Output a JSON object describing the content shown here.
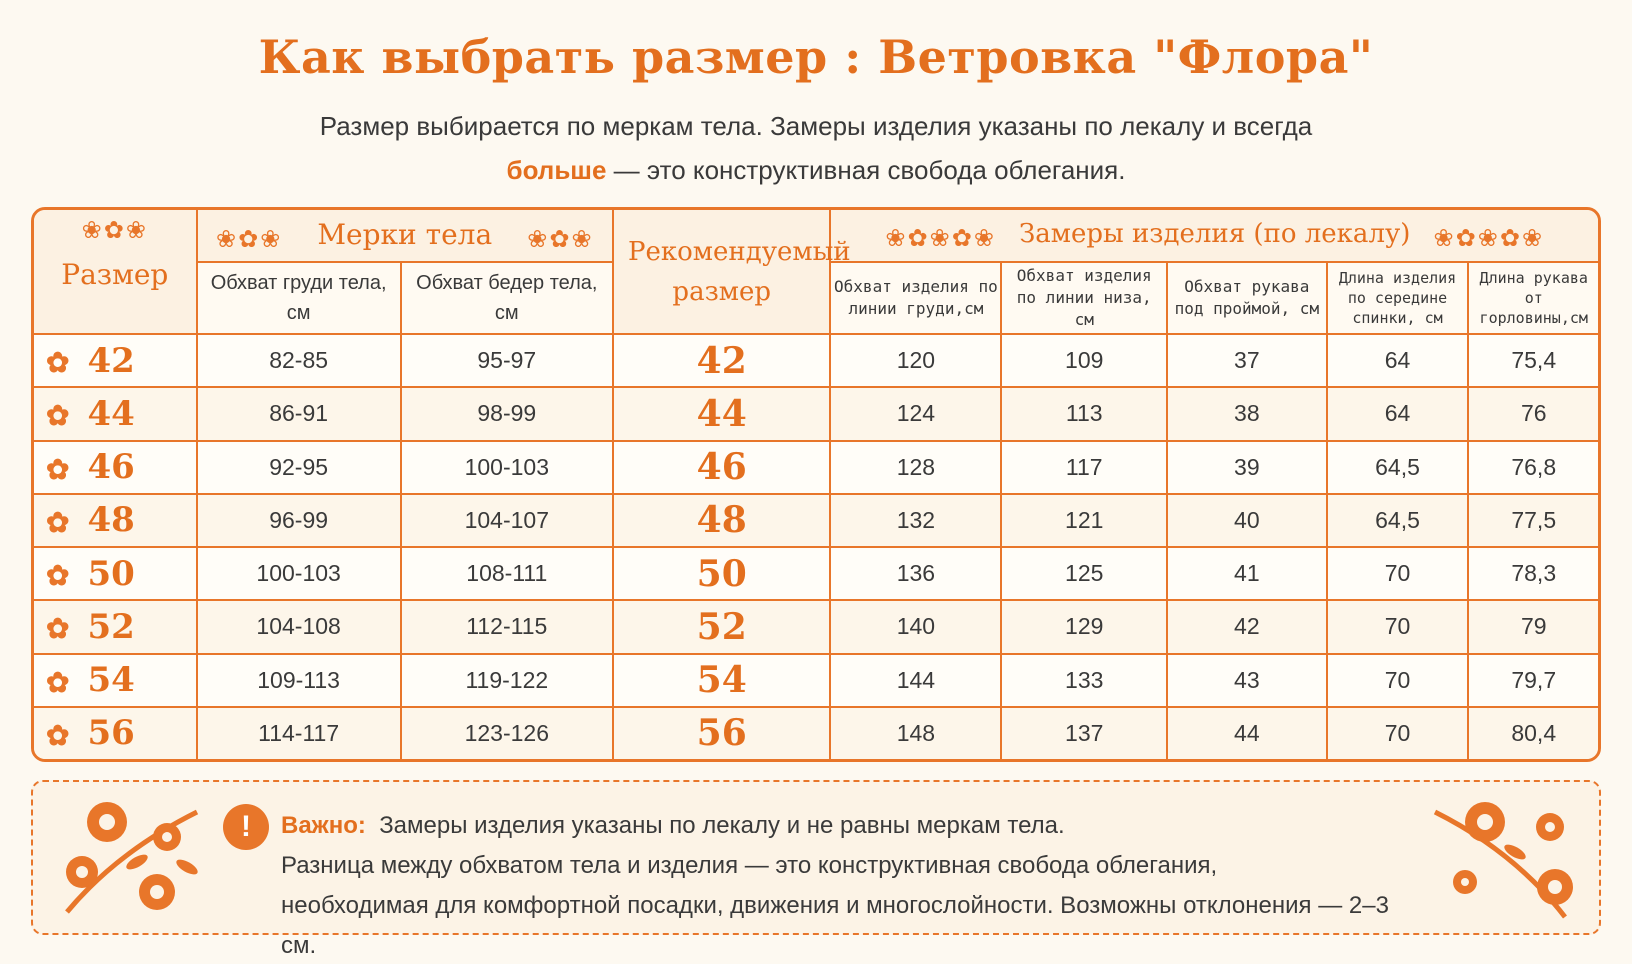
{
  "title": "Как выбрать размер :  Ветровка \"Флора\"",
  "subtitle": {
    "line1": "Размер выбирается по меркам тела. Замеры изделия указаны по лекалу и всегда",
    "bold": "больше",
    "line2_rest": " — это конструктивная свобода облегания."
  },
  "table": {
    "size_header": "Размер",
    "body_group": "Мерки тела",
    "rec_header": "Рекомендуемый размер",
    "garment_group": "Замеры изделия (по лекалу)",
    "columns": [
      "Обхват груди тела, см",
      "Обхват бедер тела, см",
      "Обхват изделия по линии груди,см",
      "Обхват изделия по линии низа, см",
      "Обхват рукава под проймой, см",
      "Длина изделия по середине спинки, см",
      "Длина рукава от горловины,см"
    ],
    "rows": [
      {
        "size": "42",
        "chest": "82-85",
        "hips": "95-97",
        "rec": "42",
        "g_chest": "120",
        "g_hem": "109",
        "sleeve": "37",
        "back": "64",
        "sleeve_len": "75,4"
      },
      {
        "size": "44",
        "chest": "86-91",
        "hips": "98-99",
        "rec": "44",
        "g_chest": "124",
        "g_hem": "113",
        "sleeve": "38",
        "back": "64",
        "sleeve_len": "76"
      },
      {
        "size": "46",
        "chest": "92-95",
        "hips": "100-103",
        "rec": "46",
        "g_chest": "128",
        "g_hem": "117",
        "sleeve": "39",
        "back": "64,5",
        "sleeve_len": "76,8"
      },
      {
        "size": "48",
        "chest": "96-99",
        "hips": "104-107",
        "rec": "48",
        "g_chest": "132",
        "g_hem": "121",
        "sleeve": "40",
        "back": "64,5",
        "sleeve_len": "77,5"
      },
      {
        "size": "50",
        "chest": "100-103",
        "hips": "108-111",
        "rec": "50",
        "g_chest": "136",
        "g_hem": "125",
        "sleeve": "41",
        "back": "70",
        "sleeve_len": "78,3"
      },
      {
        "size": "52",
        "chest": "104-108",
        "hips": "112-115",
        "rec": "52",
        "g_chest": "140",
        "g_hem": "129",
        "sleeve": "42",
        "back": "70",
        "sleeve_len": "79"
      },
      {
        "size": "54",
        "chest": "109-113",
        "hips": "119-122",
        "rec": "54",
        "g_chest": "144",
        "g_hem": "133",
        "sleeve": "43",
        "back": "70",
        "sleeve_len": "79,7"
      },
      {
        "size": "56",
        "chest": "114-117",
        "hips": "123-126",
        "rec": "56",
        "g_chest": "148",
        "g_hem": "137",
        "sleeve": "44",
        "back": "70",
        "sleeve_len": "80,4"
      }
    ]
  },
  "note": {
    "icon": "!",
    "label": "Важно:",
    "line1": "Замеры изделия указаны по лекалу и не равны меркам тела.",
    "line2": "Разница между обхватом тела и изделия — это конструктивная свобода облегания,",
    "line3": "необходимая для комфортной посадки, движения и многослойности. Возможны отклонения — 2–3 см."
  },
  "colors": {
    "accent": "#e8762a",
    "title": "#e36f1e",
    "background": "#fdf9f1"
  },
  "icons": [
    "flower-ornament-icon",
    "warning-icon",
    "floral-corner-icon"
  ]
}
